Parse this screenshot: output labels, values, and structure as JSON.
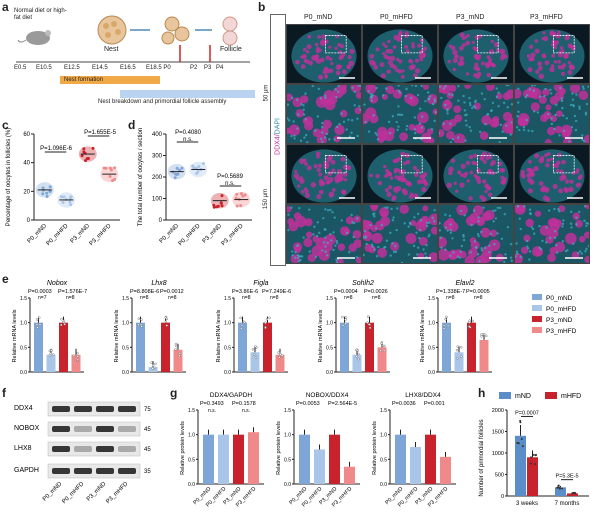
{
  "panel_letters": [
    "a",
    "b",
    "c",
    "d",
    "e",
    "f",
    "g",
    "h"
  ],
  "colors": {
    "mND": "#5b8ec9",
    "mHFD": "#c8232c",
    "P0_mND": "#7ea6d6",
    "P0_mHFD": "#a9c6e8",
    "P3_mND": "#c8232c",
    "P3_mHFD": "#f08a8a",
    "nucleus": "#2d8fa0",
    "ddx4": "#c0309a"
  },
  "panel_a": {
    "diet_note": "Normal diet or high-fat diet",
    "ticks": [
      "E0.5",
      "E10.5",
      "E12.5",
      "E14.5",
      "E16.5",
      "E18.5 P0",
      "P2",
      "P3",
      "P4"
    ],
    "nest_label": "Nest",
    "follicle_label": "Follicle",
    "bar1": "Nest formation",
    "bar2": "Nest breakdown and primordial follicle assembly"
  },
  "panel_b": {
    "columns": [
      "P0_mND",
      "P0_mHFD",
      "P3_mND",
      "P3_mHFD"
    ],
    "row_labels": [
      "50 μm",
      "150 μm"
    ],
    "stain_label_ddx4": "DDX4/",
    "stain_label_dapi": "DAPI"
  },
  "panel_c": {
    "ylabel": "Percentage of oocytes in follicles (%)",
    "yticks": [
      "0",
      "20",
      "40",
      "60"
    ],
    "groups": [
      "P0_mND",
      "P0_mHFD",
      "P3_mND",
      "P3_mHFD"
    ],
    "p1": "P=1.096E-6",
    "p2": "P=1.655E-5"
  },
  "panel_d": {
    "ylabel": "The total number of oocytes / section",
    "yticks": [
      "0",
      "100",
      "200",
      "300",
      "400"
    ],
    "groups": [
      "P0_mND",
      "P0_mHFD",
      "P3_mND",
      "P3_mHFD"
    ],
    "p1": "P=0.4080",
    "ns1": "n.s.",
    "p2": "P=0.5689",
    "ns2": "n.s."
  },
  "panel_e": {
    "ylabel": "Relative mRNA levels",
    "genes": [
      {
        "name": "Nobox",
        "p1": "P=0.0003",
        "p2": "P=1.576E-7",
        "n1": "n=7",
        "n2": "n=8"
      },
      {
        "name": "Lhx8",
        "p1": "P=8.808E-6",
        "p2": "P=0.0012",
        "n1": "n=8",
        "n2": "n=8"
      },
      {
        "name": "Figla",
        "p1": "P=3.86E-6",
        "p2": "P=7.249E-6",
        "n1": "n=8",
        "n2": "n=8"
      },
      {
        "name": "Sohlh2",
        "p1": "P=0.0004",
        "p2": "P=0.0026",
        "n1": "n=8",
        "n2": "n=8"
      },
      {
        "name": "Elavl2",
        "p1": "P=1.338E-7",
        "p2": "P=0.0005",
        "n1": "n=8",
        "n2": "n=8"
      }
    ],
    "legend": [
      "P0_mND",
      "P0_mHFD",
      "P3_mND",
      "P3_mHFD"
    ]
  },
  "panel_f": {
    "rows": [
      "DDX4",
      "NOBOX",
      "LHX8",
      "GAPDH"
    ],
    "kda": [
      "75",
      "45",
      "45",
      "35"
    ],
    "lanes": [
      "P0_mND",
      "P0_mHFD",
      "P3_mND",
      "P3_mHFD"
    ]
  },
  "panel_g": {
    "ylabel": "Relative protein levels",
    "subplots": [
      {
        "title": "DDX4/GAPDH",
        "p1": "P=0.3493",
        "p2": "P=0.1578",
        "ns1": "n.s.",
        "ns2": "n.s."
      },
      {
        "title": "NOBOX/DDX4",
        "p1": "P=0.0053",
        "p2": "P=2.564E-5",
        "ns1": "",
        "ns2": ""
      },
      {
        "title": "LHX8/DDX4",
        "p1": "P=0.0036",
        "p2": "P=0.001",
        "ns1": "",
        "ns2": ""
      }
    ],
    "groups": [
      "P0_mND",
      "P0_mHFD",
      "P3_mND",
      "P3_mHFD"
    ]
  },
  "panel_h": {
    "ylabel": "Number of primordial follicles",
    "legend": [
      "mND",
      "mHFD"
    ],
    "yticks": [
      "0",
      "500",
      "1000",
      "1500",
      "2000"
    ],
    "xcats": [
      "3 weeks",
      "7 months"
    ],
    "p1": "P=0.0007",
    "p2": "P=5.3E-5"
  },
  "chart_data": [
    {
      "type": "scatter",
      "panel": "c",
      "categories": [
        "P0_mND",
        "P0_mHFD",
        "P3_mND",
        "P3_mHFD"
      ],
      "values": [
        21,
        14,
        46,
        32
      ],
      "ylim": [
        0,
        60
      ]
    },
    {
      "type": "scatter",
      "panel": "d",
      "categories": [
        "P0_mND",
        "P0_mHFD",
        "P3_mND",
        "P3_mHFD"
      ],
      "values": [
        225,
        235,
        90,
        95
      ],
      "ylim": [
        0,
        400
      ]
    },
    {
      "type": "bar",
      "panel": "e",
      "categories": [
        "Nobox",
        "Lhx8",
        "Figla",
        "Sohlh2",
        "Elavl2"
      ],
      "series": [
        {
          "name": "P0_mND",
          "values": [
            1.0,
            1.0,
            1.0,
            1.0,
            1.0
          ]
        },
        {
          "name": "P0_mHFD",
          "values": [
            0.35,
            0.1,
            0.4,
            0.35,
            0.4
          ]
        },
        {
          "name": "P3_mND",
          "values": [
            1.0,
            1.0,
            1.0,
            1.0,
            1.0
          ]
        },
        {
          "name": "P3_mHFD",
          "values": [
            0.35,
            0.45,
            0.35,
            0.5,
            0.65
          ]
        }
      ],
      "ylim": [
        0,
        1.5
      ]
    },
    {
      "type": "bar",
      "panel": "g",
      "categories": [
        "DDX4/GAPDH",
        "NOBOX/DDX4",
        "LHX8/DDX4"
      ],
      "series": [
        {
          "name": "P0_mND",
          "values": [
            1.0,
            1.0,
            1.0
          ]
        },
        {
          "name": "P0_mHFD",
          "values": [
            1.0,
            0.7,
            0.75
          ]
        },
        {
          "name": "P3_mND",
          "values": [
            1.0,
            1.0,
            1.0
          ]
        },
        {
          "name": "P3_mHFD",
          "values": [
            1.05,
            0.35,
            0.55
          ]
        }
      ],
      "ylim": [
        0,
        1.5
      ]
    },
    {
      "type": "bar",
      "panel": "h",
      "categories": [
        "3 weeks",
        "7 months"
      ],
      "series": [
        {
          "name": "mND",
          "values": [
            1400,
            200
          ]
        },
        {
          "name": "mHFD",
          "values": [
            900,
            60
          ]
        }
      ],
      "ylim": [
        0,
        2000
      ]
    }
  ]
}
